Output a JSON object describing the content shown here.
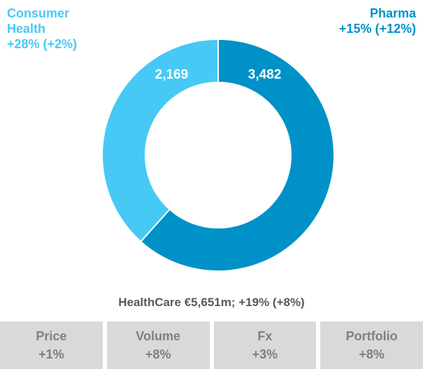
{
  "chart_data": {
    "type": "pie",
    "donut": true,
    "categories": [
      "Pharma",
      "Consumer Health"
    ],
    "values": [
      3482,
      2169
    ],
    "value_labels": [
      "3,482",
      "2,169"
    ],
    "colors": [
      "#0091c8",
      "#47c9f5"
    ],
    "annotations": [
      "+15% (+12%)",
      "+28% (+2%)"
    ],
    "caption": "HealthCare €5,651m; +19% (+8%)"
  },
  "table": {
    "headers": [
      "Price",
      "Volume",
      "Fx",
      "Portfolio"
    ],
    "values": [
      "+1%",
      "+8%",
      "+3%",
      "+8%"
    ]
  }
}
